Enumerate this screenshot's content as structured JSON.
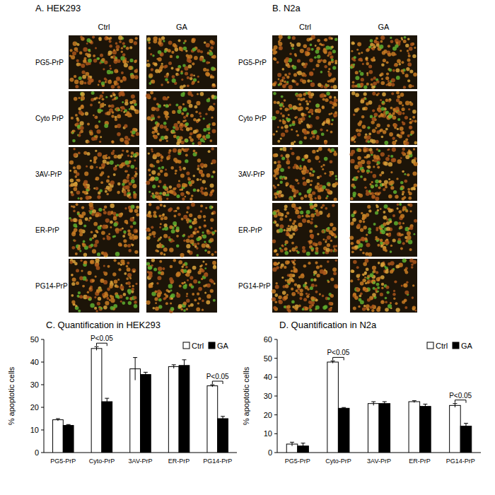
{
  "chart_data": [
    {
      "type": "bar",
      "title": "C. Quantification in HEK293",
      "y_label": "% apoptotic cells",
      "categories": [
        "PG5-PrP",
        "Cyto-PrP",
        "3AV-PrP",
        "ER-PrP",
        "PG14-PrP"
      ],
      "series": [
        {
          "name": "Ctrl",
          "color": "#ffffff",
          "values": [
            14.5,
            46,
            37,
            38,
            29.5
          ],
          "errors": [
            0.5,
            0.8,
            5,
            0.8,
            0.5
          ]
        },
        {
          "name": "GA",
          "color": "#000000",
          "values": [
            12,
            22.5,
            34.5,
            38.5,
            15
          ],
          "errors": [
            0.4,
            1.5,
            1,
            2.5,
            1
          ]
        }
      ],
      "ylim": [
        0,
        50
      ],
      "yticks": [
        0,
        10,
        20,
        30,
        40,
        50
      ],
      "grid": false,
      "legend": "upper right",
      "annotations": [
        {
          "text": "P<0.05",
          "category": "Cyto-PrP"
        },
        {
          "text": "P<0.05",
          "category": "PG14-PrP"
        }
      ]
    },
    {
      "type": "bar",
      "title": "D. Quantification in N2a",
      "y_label": "% apoptotic cells",
      "categories": [
        "PG5-PrP",
        "Cyto-PrP",
        "3AV-PrP",
        "ER-PrP",
        "PG14-PrP"
      ],
      "series": [
        {
          "name": "Ctrl",
          "color": "#ffffff",
          "values": [
            4.5,
            48,
            26,
            27,
            25
          ],
          "errors": [
            1,
            0.6,
            1,
            0.5,
            1
          ]
        },
        {
          "name": "GA",
          "color": "#000000",
          "values": [
            3.5,
            23.5,
            26,
            24.5,
            14
          ],
          "errors": [
            1.5,
            0.4,
            1,
            1.2,
            1.5
          ]
        }
      ],
      "ylim": [
        0,
        60
      ],
      "yticks": [
        0,
        10,
        20,
        30,
        40,
        50,
        60
      ],
      "grid": false,
      "legend": "upper right",
      "annotations": [
        {
          "text": "P<0.05",
          "category": "Cyto-PrP"
        },
        {
          "text": "P<0.05",
          "category": "PG14-PrP"
        }
      ]
    }
  ],
  "micrographs": [
    {
      "title": "A. HEK293",
      "columns": [
        "Ctrl",
        "GA"
      ],
      "rows": [
        "PG5-PrP",
        "Cyto PrP",
        "3AV-PrP",
        "ER-PrP",
        "PG14-PrP"
      ]
    },
    {
      "title": "B. N2a",
      "columns": [
        "Ctrl",
        "GA"
      ],
      "rows": [
        "PG5-PrP",
        "Cyto PrP",
        "3AV-PrP",
        "ER-PrP",
        "PG14-PrP"
      ]
    }
  ]
}
